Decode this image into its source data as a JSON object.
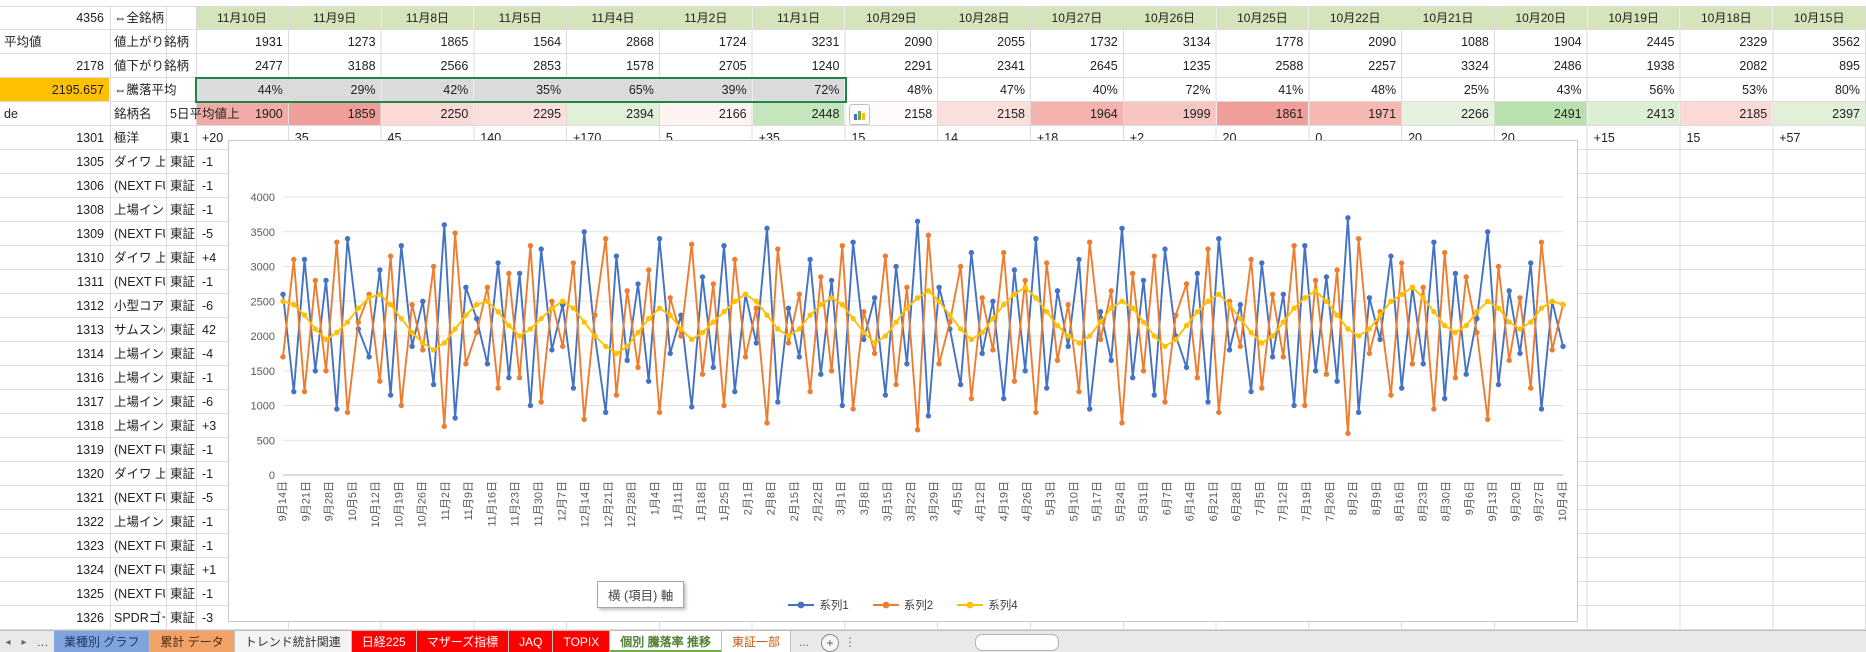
{
  "colors": {
    "series1": "#4472C4",
    "series2": "#ED7D31",
    "series4": "#FFC000",
    "date_header_bg": "#D6E4BC",
    "ratio_range_bg": "#DBDBDB",
    "ratio_range_border": "#1E8449",
    "highlight_cell_bg": "#FFC000",
    "gridline": "#DCDCDC",
    "tab_red": "#FF0000",
    "active_tab_green": "#538135"
  },
  "table": {
    "corner": {
      "r1a": "4356",
      "r1b": "⇔全銘柄",
      "r2a": "平均値",
      "r2b": "値上がり銘柄",
      "r3a": "2178",
      "r3b": "値下がり銘柄",
      "r4a": "2195.657",
      "r4b": "⇔騰落平均",
      "r5a": "de",
      "r5b": "銘柄名",
      "r5c": "5日平均値上"
    },
    "dates": [
      "11月10日",
      "11月9日",
      "11月8日",
      "11月5日",
      "11月4日",
      "11月2日",
      "11月1日",
      "10月29日",
      "10月28日",
      "10月27日",
      "10月26日",
      "10月25日",
      "10月22日",
      "10月21日",
      "10月20日",
      "10月19日",
      "10月18日",
      "10月15日"
    ],
    "up": [
      1931,
      1273,
      1865,
      1564,
      2868,
      1724,
      3231,
      2090,
      2055,
      1732,
      3134,
      1778,
      2090,
      1088,
      1904,
      2445,
      2329,
      3562
    ],
    "down": [
      2477,
      3188,
      2566,
      2853,
      1578,
      2705,
      1240,
      2291,
      2341,
      2645,
      1235,
      2588,
      2257,
      3324,
      2486,
      1938,
      2082,
      895
    ],
    "ratio": [
      "44%",
      "29%",
      "42%",
      "35%",
      "65%",
      "39%",
      "72%",
      "48%",
      "47%",
      "40%",
      "72%",
      "41%",
      "48%",
      "25%",
      "43%",
      "56%",
      "53%",
      "80%"
    ],
    "avg5": [
      1900,
      1859,
      2250,
      2295,
      2394,
      2166,
      2448,
      2158,
      2158,
      1964,
      1999,
      1861,
      1971,
      2266,
      2491,
      2413,
      2185,
      2397
    ],
    "avg5_bg": [
      "#F2ABA6",
      "#F09E99",
      "#FAD9D6",
      "#FBDFDC",
      "#E2F0DA",
      "#FDF4F2",
      "#C5E6BC",
      "#FEFBFA",
      "#FBDFDC",
      "#F4B3AE",
      "#F7C6C2",
      "#F09E99",
      "#F5B8B3",
      "#E6F2DF",
      "#B9E1AE",
      "#DCEED3",
      "#FAD9D6",
      "#E2F0DA"
    ],
    "first_stock": {
      "code": "1301",
      "name": "極洋",
      "market": "東1",
      "values": [
        "+20",
        "35",
        "45",
        "140",
        "+170",
        "5",
        "+35",
        "15",
        "14",
        "+18",
        "+2",
        "20",
        "0",
        "20",
        "20",
        "+15",
        "15",
        "+57"
      ]
    },
    "stocks": [
      {
        "code": "1305",
        "name": "ダイワ 上場",
        "market": "東証",
        "d": "-1"
      },
      {
        "code": "1306",
        "name": "(NEXT FU",
        "market": "東証",
        "d": "-1"
      },
      {
        "code": "1308",
        "name": "上場インデ",
        "market": "東証",
        "d": "-1"
      },
      {
        "code": "1309",
        "name": "(NEXT FU",
        "market": "東証",
        "d": "-5"
      },
      {
        "code": "1310",
        "name": "ダイワ 上場",
        "market": "東証",
        "d": "+4"
      },
      {
        "code": "1311",
        "name": "(NEXT FU",
        "market": "東証",
        "d": "-1"
      },
      {
        "code": "1312",
        "name": "小型コア",
        "market": "東証",
        "d": "-6"
      },
      {
        "code": "1313",
        "name": "サムスン(",
        "market": "東証",
        "d": "42"
      },
      {
        "code": "1314",
        "name": "上場インデ",
        "market": "東証",
        "d": "-4"
      },
      {
        "code": "1316",
        "name": "上場インデ",
        "market": "東証",
        "d": "-1"
      },
      {
        "code": "1317",
        "name": "上場インデ",
        "market": "東証",
        "d": "-6"
      },
      {
        "code": "1318",
        "name": "上場インデ",
        "market": "東証",
        "d": "+3"
      },
      {
        "code": "1319",
        "name": "(NEXT FU",
        "market": "東証",
        "d": "-1"
      },
      {
        "code": "1320",
        "name": "ダイワ 上場",
        "market": "東証",
        "d": "-1"
      },
      {
        "code": "1321",
        "name": "(NEXT FU",
        "market": "東証",
        "d": "-5"
      },
      {
        "code": "1322",
        "name": "上場インデ",
        "market": "東証",
        "d": "-1"
      },
      {
        "code": "1323",
        "name": "(NEXT FU",
        "market": "東証",
        "d": "-1"
      },
      {
        "code": "1324",
        "name": "(NEXT FU",
        "market": "東証",
        "d": "+1"
      },
      {
        "code": "1325",
        "name": "(NEXT FU",
        "market": "東証",
        "d": "-1"
      },
      {
        "code": "1326",
        "name": "SPDRゴー",
        "market": "東証",
        "d": "-3"
      }
    ]
  },
  "chart_data": {
    "type": "line",
    "title": "",
    "xlabel": "",
    "ylabel": "",
    "ylim": [
      0,
      4000
    ],
    "y_ticks": [
      0,
      500,
      1000,
      1500,
      2000,
      2500,
      3000,
      3500,
      4000
    ],
    "grid": true,
    "legend_position": "bottom",
    "axis_tooltip": "横 (項目) 軸",
    "x_tick_labels": [
      "9月14日",
      "9月21日",
      "9月28日",
      "10月5日",
      "10月12日",
      "10月19日",
      "10月26日",
      "11月2日",
      "11月9日",
      "11月16日",
      "11月23日",
      "11月30日",
      "12月7日",
      "12月14日",
      "12月21日",
      "12月28日",
      "1月4日",
      "1月11日",
      "1月18日",
      "1月25日",
      "2月1日",
      "2月8日",
      "2月15日",
      "2月22日",
      "3月1日",
      "3月8日",
      "3月15日",
      "3月22日",
      "3月29日",
      "4月5日",
      "4月12日",
      "4月19日",
      "4月26日",
      "5月3日",
      "5月10日",
      "5月17日",
      "5月24日",
      "5月31日",
      "6月7日",
      "6月14日",
      "6月21日",
      "6月28日",
      "7月5日",
      "7月12日",
      "7月19日",
      "7月26日",
      "8月2日",
      "8月9日",
      "8月16日",
      "8月23日",
      "8月30日",
      "9月6日",
      "9月13日",
      "9月20日",
      "9月27日",
      "10月4日"
    ],
    "series": [
      {
        "name": "系列1",
        "color": "#4472C4",
        "values": [
          2600,
          1200,
          3100,
          1500,
          2800,
          950,
          3400,
          2100,
          1700,
          2950,
          1150,
          3300,
          1850,
          2500,
          1300,
          3600,
          820,
          2700,
          2250,
          1600,
          3050,
          1400,
          2900,
          1000,
          3250,
          1800,
          2450,
          1250,
          3500,
          2000,
          900,
          3150,
          1650,
          2750,
          1350,
          3400,
          1750,
          2300,
          980,
          2850,
          1550,
          3300,
          1200,
          2600,
          1900,
          3550,
          1050,
          2400,
          1700,
          3100,
          1450,
          2800,
          1000,
          3350,
          1950,
          2550,
          1150,
          3000,
          1600,
          3650,
          850,
          2700,
          2100,
          1300,
          3200,
          1750,
          2500,
          1100,
          2950,
          1500,
          3400,
          1250,
          2650,
          1850,
          3100,
          950,
          2350,
          1650,
          3550,
          1400,
          2800,
          1150,
          3250,
          2000,
          1550,
          2900,
          1050,
          3400,
          1800,
          2450,
          1200,
          3050,
          1700,
          2600,
          1000,
          3300,
          1500,
          2850,
          1350,
          3700,
          900,
          2550,
          1950,
          3150,
          1250,
          2700,
          1600,
          3350,
          1100,
          2900,
          1450,
          2250,
          3500,
          1300,
          2650,
          1750,
          3050,
          950,
          2500,
          1850
        ]
      },
      {
        "name": "系列2",
        "color": "#ED7D31",
        "values": [
          1700,
          3100,
          1200,
          2800,
          1500,
          3350,
          900,
          2200,
          2600,
          1350,
          3150,
          1000,
          2450,
          1800,
          3000,
          700,
          3480,
          1600,
          2050,
          2700,
          1250,
          2900,
          1400,
          3300,
          1050,
          2500,
          1850,
          3050,
          800,
          2300,
          3400,
          1150,
          2650,
          1550,
          2950,
          900,
          2550,
          2000,
          3320,
          1450,
          2750,
          1000,
          3100,
          1700,
          2400,
          750,
          3250,
          1900,
          2600,
          1200,
          2850,
          1500,
          3300,
          950,
          2350,
          1750,
          3150,
          1300,
          2700,
          650,
          3450,
          1600,
          2200,
          3000,
          1100,
          2550,
          1800,
          3200,
          1350,
          2800,
          900,
          3050,
          1650,
          2450,
          1200,
          3350,
          1950,
          2650,
          750,
          2900,
          1500,
          3150,
          1050,
          2300,
          2750,
          1400,
          3250,
          900,
          2500,
          1850,
          3100,
          1250,
          2600,
          1700,
          3300,
          1000,
          2800,
          1450,
          2950,
          600,
          3400,
          1750,
          2350,
          1150,
          3050,
          1600,
          2700,
          950,
          3200,
          1400,
          2850,
          2050,
          800,
          3000,
          1650,
          2550,
          1250,
          3350,
          1800,
          2450
        ]
      },
      {
        "name": "系列4",
        "color": "#FFC000",
        "values": [
          2500,
          2450,
          2300,
          2100,
          1950,
          2050,
          2200,
          2400,
          2550,
          2600,
          2450,
          2250,
          2050,
          1900,
          1800,
          1900,
          2100,
          2300,
          2450,
          2500,
          2350,
          2150,
          2000,
          2100,
          2250,
          2400,
          2500,
          2400,
          2200,
          2000,
          1850,
          1750,
          1850,
          2050,
          2250,
          2400,
          2300,
          2100,
          1950,
          2050,
          2200,
          2350,
          2500,
          2600,
          2500,
          2300,
          2100,
          2000,
          2100,
          2300,
          2450,
          2550,
          2450,
          2250,
          2050,
          1900,
          2000,
          2200,
          2400,
          2550,
          2650,
          2500,
          2300,
          2100,
          1950,
          2050,
          2250,
          2450,
          2600,
          2700,
          2550,
          2350,
          2150,
          2000,
          1900,
          2000,
          2200,
          2400,
          2500,
          2400,
          2200,
          2000,
          1850,
          1950,
          2150,
          2350,
          2500,
          2600,
          2450,
          2250,
          2050,
          1900,
          2000,
          2200,
          2400,
          2550,
          2650,
          2500,
          2300,
          2100,
          2000,
          2100,
          2300,
          2500,
          2600,
          2700,
          2550,
          2350,
          2150,
          2050,
          2150,
          2350,
          2500,
          2400,
          2200,
          2100,
          2200,
          2400,
          2500,
          2450
        ]
      }
    ]
  },
  "sheet_tabs": {
    "nav": {
      "prev": "◂",
      "next": "▸",
      "more": "…"
    },
    "tabs": [
      {
        "label": "業種別 グラフ",
        "bg": "#7FA3DC",
        "fg": "#1F3864",
        "active": false
      },
      {
        "label": "累計 データ",
        "bg": "#F2A266",
        "fg": "#492A12",
        "active": false
      },
      {
        "label": "トレンド統計関連",
        "bg": "#F3F3F3",
        "fg": "#333333",
        "active": false
      },
      {
        "label": "日経225",
        "bg": "#FF0000",
        "fg": "#FFFFFF",
        "active": false
      },
      {
        "label": "マザーズ指標",
        "bg": "#FF0000",
        "fg": "#FFFFFF",
        "active": false
      },
      {
        "label": "JAQ",
        "bg": "#FF0000",
        "fg": "#FFFFFF",
        "active": false
      },
      {
        "label": "TOPIX",
        "bg": "#FF0000",
        "fg": "#FFFFFF",
        "active": false
      },
      {
        "label": "個別 騰落率 推移",
        "bg": "#FFFFFF",
        "fg": "#538135",
        "active": true
      },
      {
        "label": "東証一部",
        "bg": "#FFFFFF",
        "fg": "#C55A11",
        "active": false
      }
    ],
    "overflow_dots": "...",
    "add_sheet": "+"
  }
}
